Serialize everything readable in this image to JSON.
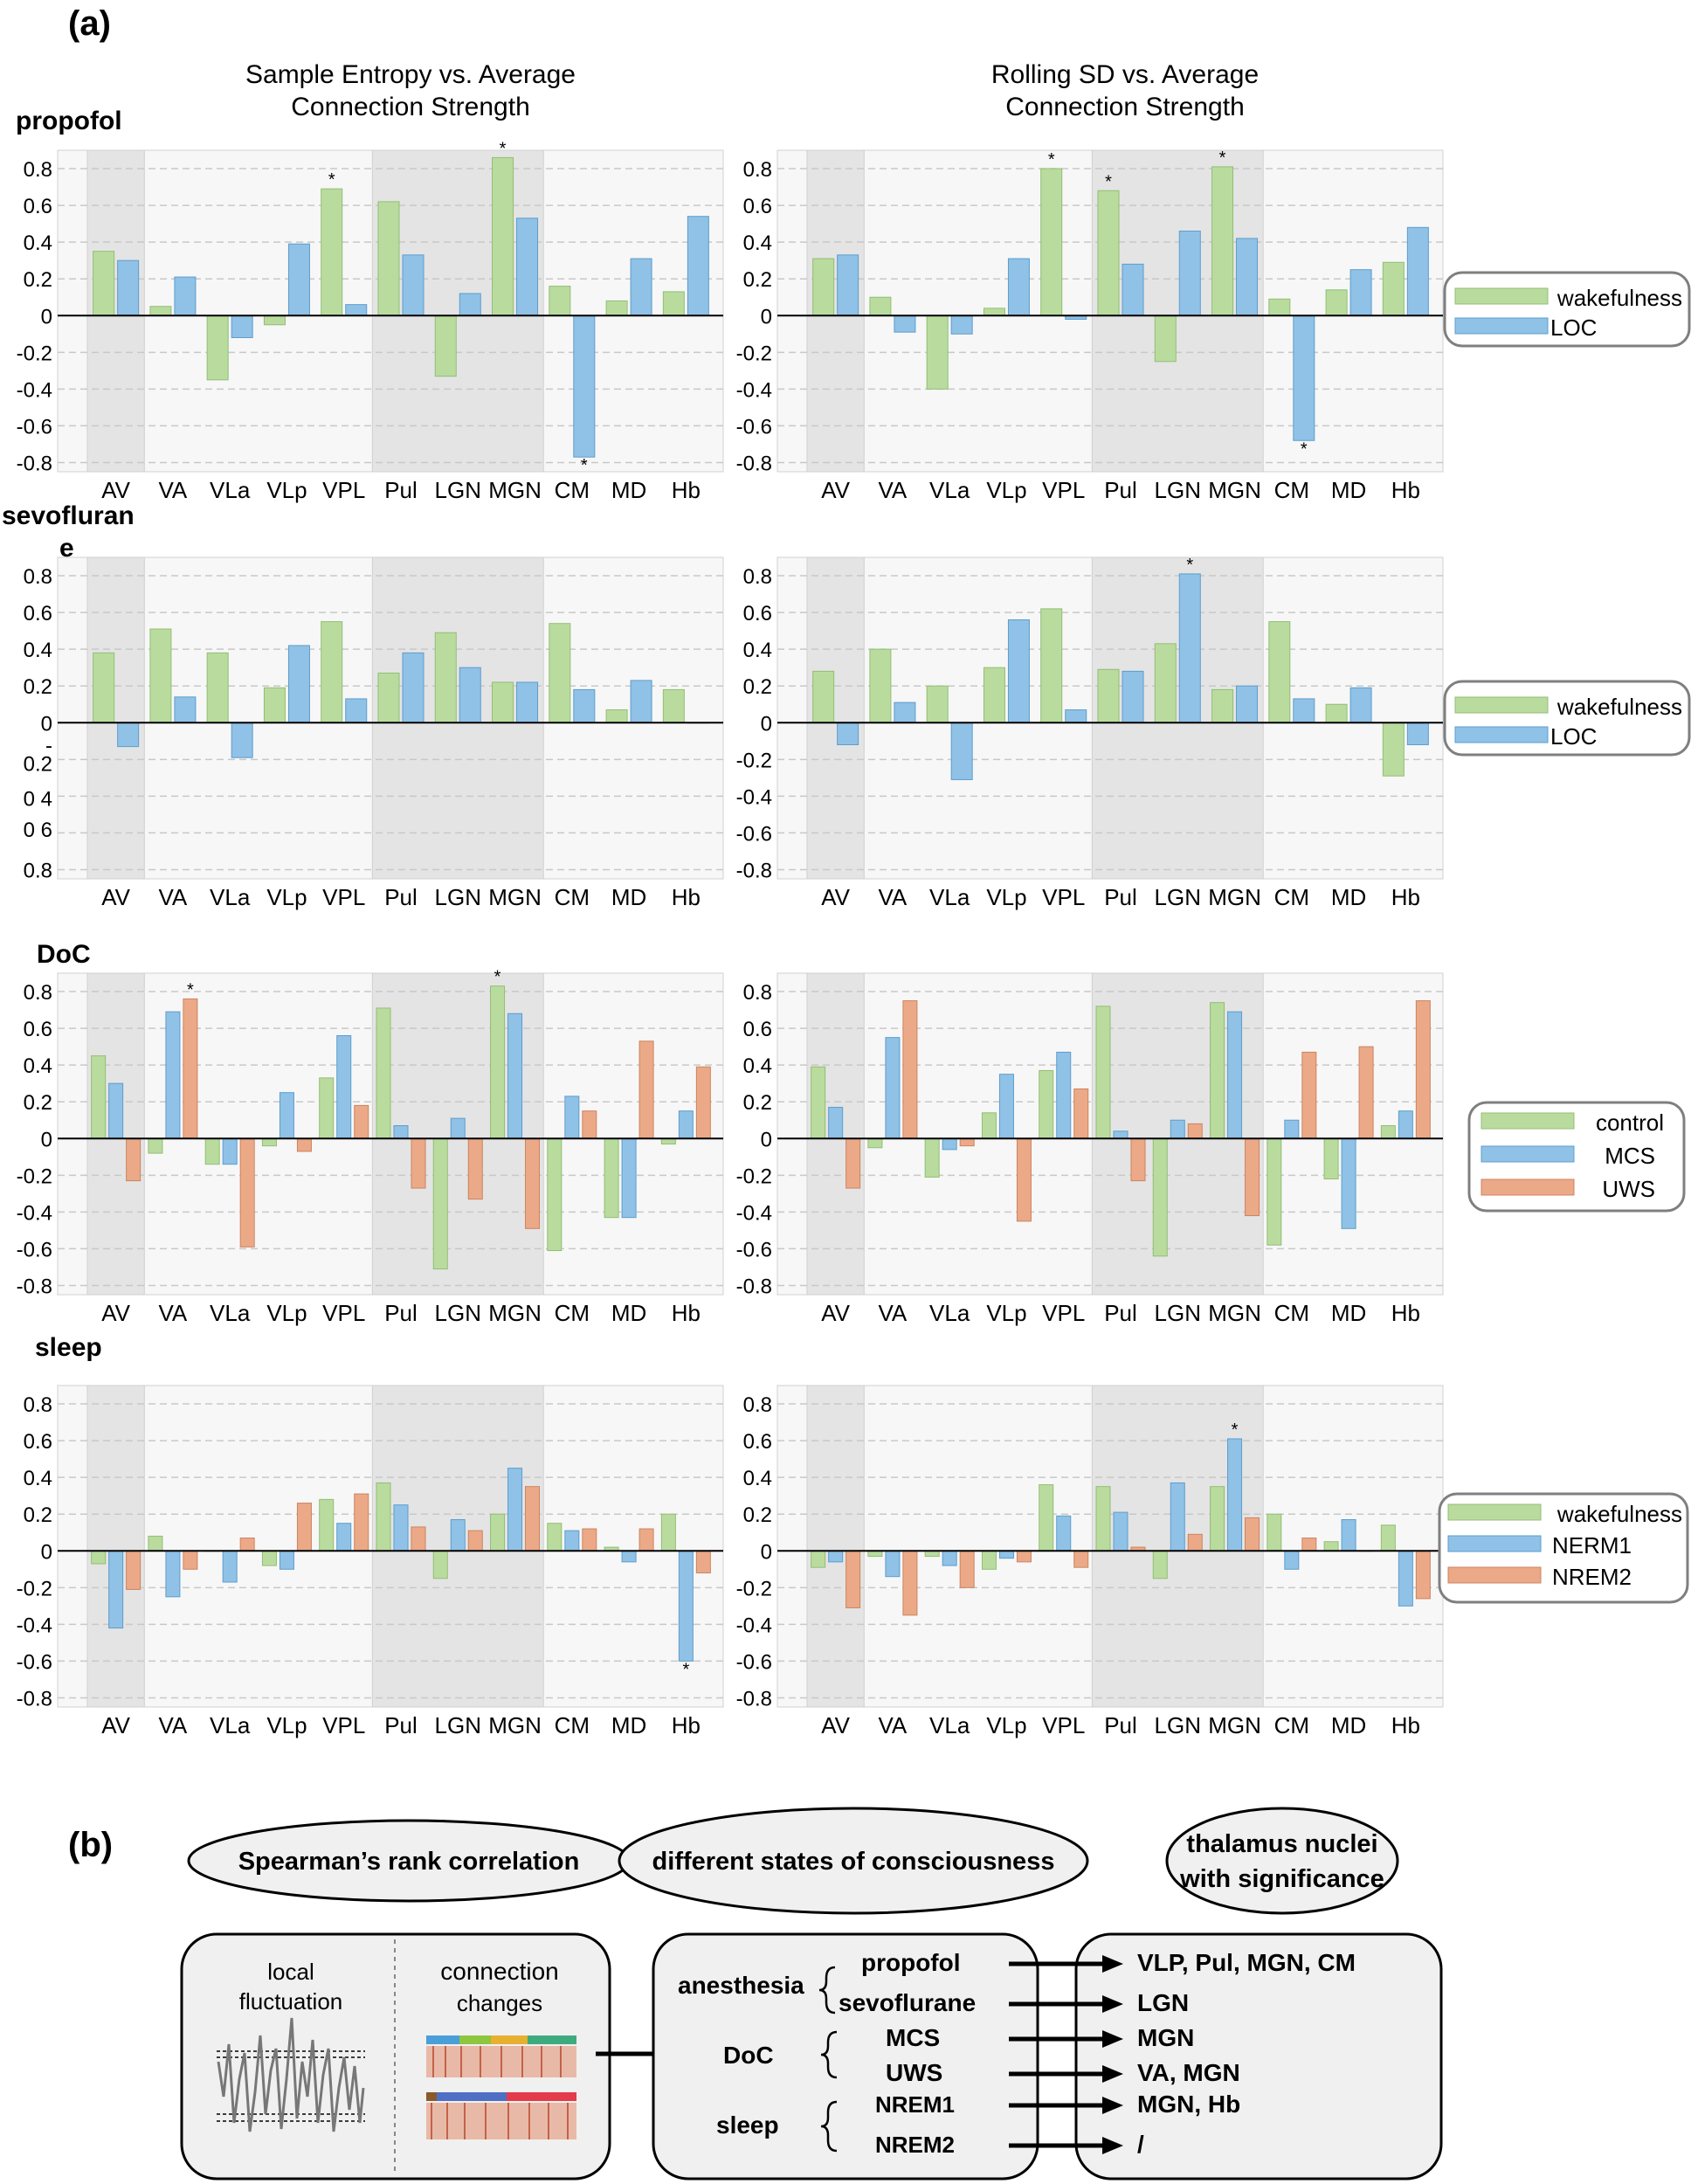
{
  "figure": {
    "panel_a_label": "(a)",
    "panel_b_label": "(b)",
    "col_titles": [
      [
        "Sample Entropy vs. Average",
        "Connection Strength"
      ],
      [
        "Rolling SD vs. Average",
        "Connection Strength"
      ]
    ],
    "row_labels": [
      "propofol",
      "sevofluran",
      "DoC",
      "sleep"
    ],
    "sevo_wrap": "e",
    "sevo_left_yticks": [
      "0.8",
      "0.6",
      "0.4",
      "0.2",
      "0",
      "-",
      "0.2",
      "0 4",
      "0 6",
      "0.8"
    ],
    "legends": [
      [
        "wakefulness",
        "LOC"
      ],
      [
        "wakefulness",
        "LOC"
      ],
      [
        "control",
        "MCS",
        "UWS"
      ],
      [
        "wakefulness",
        "NERM1",
        "NREM2"
      ]
    ]
  },
  "colors": {
    "green": "#b9dc9e",
    "blue": "#8fc2e6",
    "orange": "#eba987",
    "green_edge": "#93bd75",
    "blue_edge": "#5e9dcc",
    "orange_edge": "#cc8460"
  },
  "chart_data": [
    {
      "type": "bar",
      "id": "propofol-sampen",
      "categories": [
        "AV",
        "VA",
        "VLa",
        "VLp",
        "VPL",
        "Pul",
        "LGN",
        "MGN",
        "CM",
        "MD",
        "Hb"
      ],
      "ylim": [
        -0.85,
        0.9
      ],
      "yticks": [
        "0.8",
        "0.6",
        "0.4",
        "0.2",
        "0",
        "-0.2",
        "-0.4",
        "-0.6",
        "-0.8"
      ],
      "series": [
        {
          "name": "wakefulness",
          "values": [
            0.35,
            0.05,
            -0.35,
            -0.05,
            0.69,
            0.62,
            -0.33,
            0.86,
            0.16,
            0.08,
            0.13
          ]
        },
        {
          "name": "LOC",
          "values": [
            0.3,
            0.21,
            -0.12,
            0.39,
            0.06,
            0.33,
            0.12,
            0.53,
            -0.77,
            0.31,
            0.54
          ]
        }
      ],
      "stars": [
        {
          "cat": "VPL",
          "series": "wakefulness"
        },
        {
          "cat": "MGN",
          "series": "wakefulness"
        },
        {
          "cat": "CM",
          "series": "LOC"
        }
      ]
    },
    {
      "type": "bar",
      "id": "propofol-rollsd",
      "categories": [
        "AV",
        "VA",
        "VLa",
        "VLp",
        "VPL",
        "Pul",
        "LGN",
        "MGN",
        "CM",
        "MD",
        "Hb"
      ],
      "ylim": [
        -0.85,
        0.9
      ],
      "yticks": [
        "0.8",
        "0.6",
        "0.4",
        "0.2",
        "0",
        "-0.2",
        "-0.4",
        "-0.6",
        "-0.8"
      ],
      "series": [
        {
          "name": "wakefulness",
          "values": [
            0.31,
            0.1,
            -0.4,
            0.04,
            0.8,
            0.68,
            -0.25,
            0.81,
            0.09,
            0.14,
            0.29
          ]
        },
        {
          "name": "LOC",
          "values": [
            0.33,
            -0.09,
            -0.1,
            0.31,
            -0.02,
            0.28,
            0.46,
            0.42,
            -0.68,
            0.25,
            0.48
          ]
        }
      ],
      "stars": [
        {
          "cat": "VPL",
          "series": "wakefulness"
        },
        {
          "cat": "Pul",
          "series": "wakefulness"
        },
        {
          "cat": "MGN",
          "series": "wakefulness"
        },
        {
          "cat": "CM",
          "series": "LOC"
        }
      ]
    },
    {
      "type": "bar",
      "id": "sevo-sampen",
      "categories": [
        "AV",
        "VA",
        "VLa",
        "VLp",
        "VPL",
        "Pul",
        "LGN",
        "MGN",
        "CM",
        "MD",
        "Hb"
      ],
      "ylim": [
        -0.85,
        0.9
      ],
      "yticks": [
        "0.8",
        "0.6",
        "0.4",
        "0.2",
        "0",
        "-",
        "0.2",
        "0 4",
        "0 6",
        "0.8"
      ],
      "series": [
        {
          "name": "wakefulness",
          "values": [
            0.38,
            0.51,
            0.38,
            0.19,
            0.55,
            0.27,
            0.49,
            0.22,
            0.54,
            0.07,
            0.18
          ]
        },
        {
          "name": "LOC",
          "values": [
            -0.13,
            0.14,
            -0.19,
            0.42,
            0.13,
            0.38,
            0.3,
            0.22,
            0.18,
            0.23,
            0.0
          ]
        }
      ],
      "stars": []
    },
    {
      "type": "bar",
      "id": "sevo-rollsd",
      "categories": [
        "AV",
        "VA",
        "VLa",
        "VLp",
        "VPL",
        "Pul",
        "LGN",
        "MGN",
        "CM",
        "MD",
        "Hb"
      ],
      "ylim": [
        -0.85,
        0.9
      ],
      "yticks": [
        "0.8",
        "0.6",
        "0.4",
        "0.2",
        "0",
        "-0.2",
        "-0.4",
        "-0.6",
        "-0.8"
      ],
      "series": [
        {
          "name": "wakefulness",
          "values": [
            0.28,
            0.4,
            0.2,
            0.3,
            0.62,
            0.29,
            0.43,
            0.18,
            0.55,
            0.1,
            -0.29
          ]
        },
        {
          "name": "LOC",
          "values": [
            -0.12,
            0.11,
            -0.31,
            0.56,
            0.07,
            0.28,
            0.81,
            0.2,
            0.13,
            0.19,
            -0.12
          ]
        }
      ],
      "stars": [
        {
          "cat": "LGN",
          "series": "LOC"
        }
      ]
    },
    {
      "type": "bar",
      "id": "doc-sampen",
      "categories": [
        "AV",
        "VA",
        "VLa",
        "VLp",
        "VPL",
        "Pul",
        "LGN",
        "MGN",
        "CM",
        "MD",
        "Hb"
      ],
      "ylim": [
        -0.85,
        0.9
      ],
      "yticks": [
        "0.8",
        "0.6",
        "0.4",
        "0.2",
        "0",
        "-0.2",
        "-0.4",
        "-0.6",
        "-0.8"
      ],
      "series": [
        {
          "name": "control",
          "values": [
            0.45,
            -0.08,
            -0.14,
            -0.04,
            0.33,
            0.71,
            -0.71,
            0.83,
            -0.61,
            -0.43,
            -0.03
          ]
        },
        {
          "name": "MCS",
          "values": [
            0.3,
            0.69,
            -0.14,
            0.25,
            0.56,
            0.07,
            0.11,
            0.68,
            0.23,
            -0.43,
            0.15
          ]
        },
        {
          "name": "UWS",
          "values": [
            -0.23,
            0.76,
            -0.59,
            -0.07,
            0.18,
            -0.27,
            -0.33,
            -0.49,
            0.15,
            0.53,
            0.39
          ]
        }
      ],
      "stars": [
        {
          "cat": "VA",
          "series": "UWS"
        },
        {
          "cat": "MGN",
          "series": "control"
        }
      ]
    },
    {
      "type": "bar",
      "id": "doc-rollsd",
      "categories": [
        "AV",
        "VA",
        "VLa",
        "VLp",
        "VPL",
        "Pul",
        "LGN",
        "MGN",
        "CM",
        "MD",
        "Hb"
      ],
      "ylim": [
        -0.85,
        0.9
      ],
      "yticks": [
        "0.8",
        "0.6",
        "0.4",
        "0.2",
        "0",
        "-0.2",
        "-0.4",
        "-0.6",
        "-0.8"
      ],
      "series": [
        {
          "name": "control",
          "values": [
            0.39,
            -0.05,
            -0.21,
            0.14,
            0.37,
            0.72,
            -0.64,
            0.74,
            -0.58,
            -0.22,
            0.07
          ]
        },
        {
          "name": "MCS",
          "values": [
            0.17,
            0.55,
            -0.06,
            0.35,
            0.47,
            0.04,
            0.1,
            0.69,
            0.1,
            -0.49,
            0.15
          ]
        },
        {
          "name": "UWS",
          "values": [
            -0.27,
            0.75,
            -0.04,
            -0.45,
            0.27,
            -0.23,
            0.08,
            -0.42,
            0.47,
            0.5,
            0.75
          ]
        }
      ],
      "stars": []
    },
    {
      "type": "bar",
      "id": "sleep-sampen",
      "categories": [
        "AV",
        "VA",
        "VLa",
        "VLp",
        "VPL",
        "Pul",
        "LGN",
        "MGN",
        "CM",
        "MD",
        "Hb"
      ],
      "ylim": [
        -0.85,
        0.9
      ],
      "yticks": [
        "0.8",
        "0.6",
        "0.4",
        "0.2",
        "0",
        "-0.2",
        "-0.4",
        "-0.6",
        "-0.8"
      ],
      "series": [
        {
          "name": "wakefulness",
          "values": [
            -0.07,
            0.08,
            0.0,
            -0.08,
            0.28,
            0.37,
            -0.15,
            0.2,
            0.15,
            0.02,
            0.2
          ]
        },
        {
          "name": "NERM1",
          "values": [
            -0.42,
            -0.25,
            -0.17,
            -0.1,
            0.15,
            0.25,
            0.17,
            0.45,
            0.11,
            -0.06,
            -0.6
          ]
        },
        {
          "name": "NREM2",
          "values": [
            -0.21,
            -0.1,
            0.07,
            0.26,
            0.31,
            0.13,
            0.11,
            0.35,
            0.12,
            0.12,
            -0.12
          ]
        }
      ],
      "stars": [
        {
          "cat": "Hb",
          "series": "NERM1"
        }
      ]
    },
    {
      "type": "bar",
      "id": "sleep-rollsd",
      "categories": [
        "AV",
        "VA",
        "VLa",
        "VLp",
        "VPL",
        "Pul",
        "LGN",
        "MGN",
        "CM",
        "MD",
        "Hb"
      ],
      "ylim": [
        -0.85,
        0.9
      ],
      "yticks": [
        "0.8",
        "0.6",
        "0.4",
        "0.2",
        "0",
        "-0.2",
        "-0.4",
        "-0.6",
        "-0.8"
      ],
      "series": [
        {
          "name": "wakefulness",
          "values": [
            -0.09,
            -0.03,
            -0.03,
            -0.1,
            0.36,
            0.35,
            -0.15,
            0.35,
            0.2,
            0.05,
            0.14
          ]
        },
        {
          "name": "NERM1",
          "values": [
            -0.06,
            -0.14,
            -0.08,
            -0.04,
            0.19,
            0.21,
            0.37,
            0.61,
            -0.1,
            0.17,
            -0.3
          ]
        },
        {
          "name": "NREM2",
          "values": [
            -0.31,
            -0.35,
            -0.2,
            -0.06,
            -0.09,
            0.02,
            0.09,
            0.18,
            0.07,
            0.0,
            -0.26
          ]
        }
      ],
      "stars": [
        {
          "cat": "MGN",
          "series": "NERM1"
        }
      ]
    }
  ],
  "diagram": {
    "ovals": [
      "Spearman’s rank correlation",
      "different states of consciousness",
      [
        "thalamus nuclei",
        "with significance"
      ]
    ],
    "box1": {
      "local": [
        "local",
        "fluctuation"
      ],
      "conn": [
        "connection",
        "changes"
      ]
    },
    "box2": {
      "anesthesia": "anesthesia",
      "propofol": "propofol",
      "sevoflurane": "sevoflurane",
      "doc": "DoC",
      "mcs": "MCS",
      "uws": "UWS",
      "sleep": "sleep",
      "nrem1": "NREM1",
      "nrem2": "NREM2"
    },
    "box3": [
      "VLP, Pul, MGN, CM",
      "LGN",
      "MGN",
      "VA, MGN",
      "MGN, Hb",
      "/"
    ]
  }
}
